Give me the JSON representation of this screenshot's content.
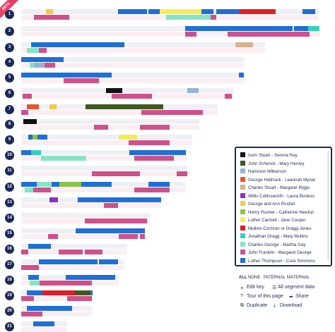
{
  "badge": "BETA",
  "chromosomes": [
    "1",
    "2",
    "3",
    "4",
    "5",
    "6",
    "7",
    "8",
    "9",
    "10",
    "11",
    "12",
    "13",
    "14",
    "15",
    "16",
    "17",
    "18",
    "19",
    "20",
    "21"
  ],
  "legend": [
    {
      "name": "Isom Stuart - Serena Ray",
      "color": "#111111"
    },
    {
      "name": "John Schenck - Mary Harvey",
      "color": "#3d5a1e"
    },
    {
      "name": "Hammon Wilkerson",
      "color": "#94b4d8"
    },
    {
      "name": "George Hallmark - Leannah Mynat",
      "color": "#e4572e"
    },
    {
      "name": "Charles Stuart - Margaret Riggs",
      "color": "#d8b08c"
    },
    {
      "name": "Willis Collinsworth - Laura Burleso",
      "color": "#8b2fc9"
    },
    {
      "name": "George and Ann Rusher",
      "color": "#f2c94c"
    },
    {
      "name": "Henry Rusher - Catherine Newton",
      "color": "#8bc34a"
    },
    {
      "name": "Luther Cantrell - Jane Cooper",
      "color": "#f3ec5a"
    },
    {
      "name": "Mullins-Cochran or Gragg-Jones",
      "color": "#e01e26"
    },
    {
      "name": "Jonathan Gragg - Mary Mullins",
      "color": "#33d1bd"
    },
    {
      "name": "Charles George - Martha Gay",
      "color": "#88e2c6"
    },
    {
      "name": "John Franklin - Margaret George",
      "color": "#d0508a"
    },
    {
      "name": "Luther Thompson - Cora Simmons",
      "color": "#1f6fd6"
    }
  ],
  "filters": [
    "ALL",
    "NONE",
    "PATERNAL",
    "MATERNAL"
  ],
  "actions": [
    "Edit key",
    "All segment data",
    "Tour of this page",
    "Share",
    "Duplicate",
    "Download"
  ]
}
